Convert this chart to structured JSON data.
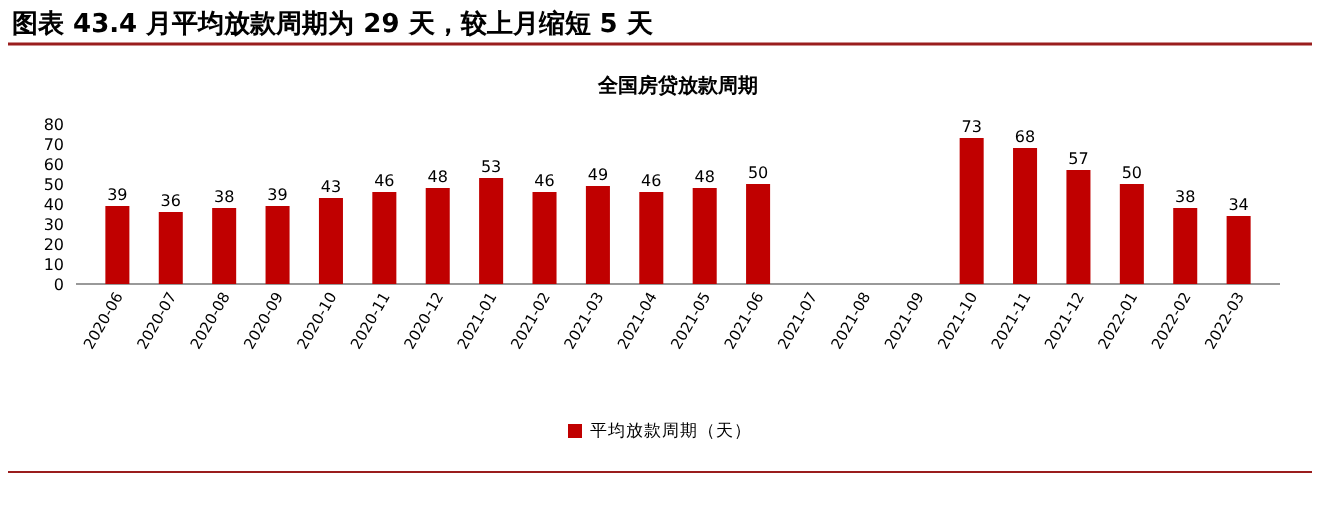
{
  "chart_data": {
    "type": "bar",
    "title": "图表 43.4 月平均放款周期为 29 天，较上月缩短 5 天",
    "subtitle": "全国房贷放款周期",
    "categories": [
      "2020-06",
      "2020-07",
      "2020-08",
      "2020-09",
      "2020-10",
      "2020-11",
      "2020-12",
      "2021-01",
      "2021-02",
      "2021-03",
      "2021-04",
      "2021-05",
      "2021-06",
      "2021-07",
      "2021-08",
      "2021-09",
      "2021-10",
      "2021-11",
      "2021-12",
      "2022-01",
      "2022-02",
      "2022-03"
    ],
    "series": [
      {
        "name": "平均放款周期（天）",
        "color": "#c00000",
        "values": [
          39,
          36,
          38,
          39,
          43,
          46,
          48,
          53,
          46,
          49,
          46,
          48,
          50,
          null,
          null,
          null,
          73,
          68,
          57,
          50,
          38,
          34
        ]
      }
    ],
    "ylim": [
      0,
      80
    ],
    "yticks": [
      0,
      10,
      20,
      30,
      40,
      50,
      60,
      70,
      80
    ],
    "data_labels": true,
    "grid": false,
    "legend": "bottom"
  }
}
